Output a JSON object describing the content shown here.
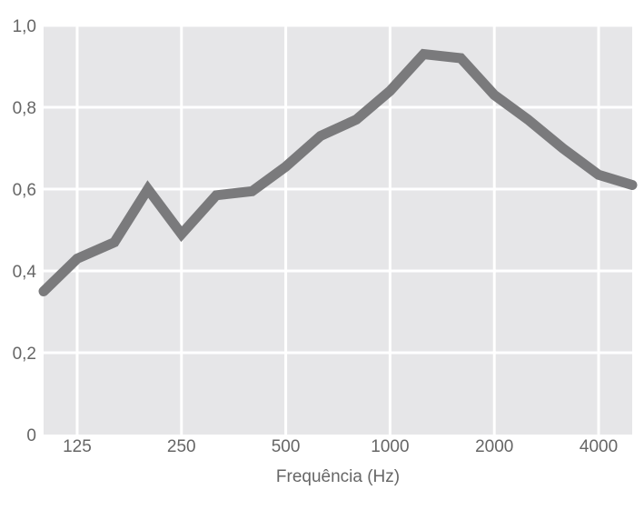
{
  "chart_data": {
    "type": "line",
    "title": "",
    "xlabel": "Frequência (Hz)",
    "ylabel": "",
    "x_scale": "log",
    "x_ticks": [
      125,
      250,
      500,
      1000,
      2000,
      4000
    ],
    "x_tick_labels": [
      "125",
      "250",
      "500",
      "1000",
      "2000",
      "4000"
    ],
    "y_ticks": [
      0,
      0.2,
      0.4,
      0.6,
      0.8,
      1.0
    ],
    "y_tick_labels": [
      "0",
      "0,2",
      "0,4",
      "0,6",
      "0,8",
      "1,0"
    ],
    "ylim": [
      0,
      1.0
    ],
    "xlim": [
      100,
      5000
    ],
    "grid": true,
    "colors": {
      "plot_bg": "#e6e6e8",
      "grid": "#ffffff",
      "line": "#7a7a7c",
      "text": "#666666"
    },
    "series": [
      {
        "x": [
          100,
          125,
          160,
          200,
          250,
          315,
          400,
          500,
          630,
          800,
          1000,
          1250,
          1600,
          2000,
          2500,
          3150,
          4000,
          5000
        ],
        "values": [
          0.35,
          0.43,
          0.47,
          0.6,
          0.49,
          0.585,
          0.595,
          0.655,
          0.73,
          0.77,
          0.84,
          0.93,
          0.92,
          0.83,
          0.77,
          0.7,
          0.635,
          0.61
        ]
      }
    ]
  }
}
